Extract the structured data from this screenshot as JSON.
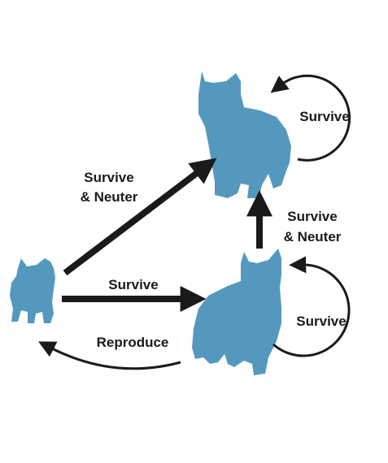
{
  "colors": {
    "cat": "#5499bd",
    "arrow": "#1a1a1a",
    "background": "#ffffff"
  },
  "nodes": {
    "kitten": {
      "icon": "kitten-icon"
    },
    "juvenile_cat": {
      "icon": "juvenile-cat-icon"
    },
    "neutered_adult_cat": {
      "icon": "neutered-adult-cat-icon"
    }
  },
  "labels": {
    "kitten_to_adult_survive_line1": "Survive",
    "kitten_to_adult_survive_line2": "& Neuter",
    "kitten_to_juvenile": "Survive",
    "juvenile_to_kitten": "Reproduce",
    "juvenile_to_adult_line1": "Survive",
    "juvenile_to_adult_line2": "& Neuter",
    "adult_self_loop": "Survive",
    "juvenile_self_loop": "Survive"
  }
}
